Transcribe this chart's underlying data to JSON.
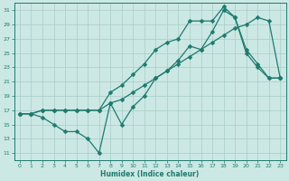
{
  "xlabel": "Humidex (Indice chaleur)",
  "bg_color": "#cce8e4",
  "grid_color": "#a8ccc8",
  "line_color": "#1e7a6e",
  "xlim": [
    -0.5,
    23.5
  ],
  "ylim": [
    10.0,
    32.0
  ],
  "xticks": [
    0,
    1,
    2,
    3,
    4,
    5,
    6,
    7,
    8,
    9,
    10,
    11,
    12,
    13,
    14,
    15,
    16,
    17,
    18,
    19,
    20,
    21,
    22,
    23
  ],
  "yticks": [
    11,
    13,
    15,
    17,
    19,
    21,
    23,
    25,
    27,
    29,
    31
  ],
  "curve1_x": [
    0,
    1,
    2,
    3,
    4,
    5,
    6,
    7,
    8,
    9,
    10,
    11,
    12,
    13,
    14,
    15,
    16,
    17,
    18,
    19,
    20,
    21,
    22,
    23
  ],
  "curve1_y": [
    16.5,
    16.5,
    16.0,
    15.0,
    14.0,
    14.0,
    13.0,
    11.0,
    18.0,
    15.0,
    17.5,
    19.0,
    21.5,
    22.5,
    24.0,
    26.0,
    25.5,
    28.0,
    31.0,
    30.0,
    25.0,
    23.0,
    21.5,
    21.5
  ],
  "curve2_x": [
    0,
    1,
    2,
    3,
    4,
    5,
    6,
    7,
    8,
    9,
    10,
    11,
    12,
    13,
    14,
    15,
    16,
    17,
    18,
    19,
    20,
    21,
    22,
    23
  ],
  "curve2_y": [
    16.5,
    16.5,
    17.0,
    17.0,
    17.0,
    17.0,
    17.0,
    17.0,
    18.0,
    18.5,
    19.5,
    20.5,
    21.5,
    22.5,
    23.5,
    24.5,
    25.5,
    26.5,
    27.5,
    28.5,
    29.0,
    30.0,
    29.5,
    21.5
  ],
  "curve3_x": [
    0,
    1,
    2,
    3,
    4,
    5,
    6,
    7,
    8,
    9,
    10,
    11,
    12,
    13,
    14,
    15,
    16,
    17,
    18,
    19,
    20,
    21,
    22,
    23
  ],
  "curve3_y": [
    16.5,
    16.5,
    17.0,
    17.0,
    17.0,
    17.0,
    17.0,
    17.0,
    19.5,
    20.5,
    22.0,
    23.5,
    25.5,
    26.5,
    27.0,
    29.5,
    29.5,
    29.5,
    31.5,
    30.0,
    25.5,
    23.5,
    21.5,
    21.5
  ]
}
